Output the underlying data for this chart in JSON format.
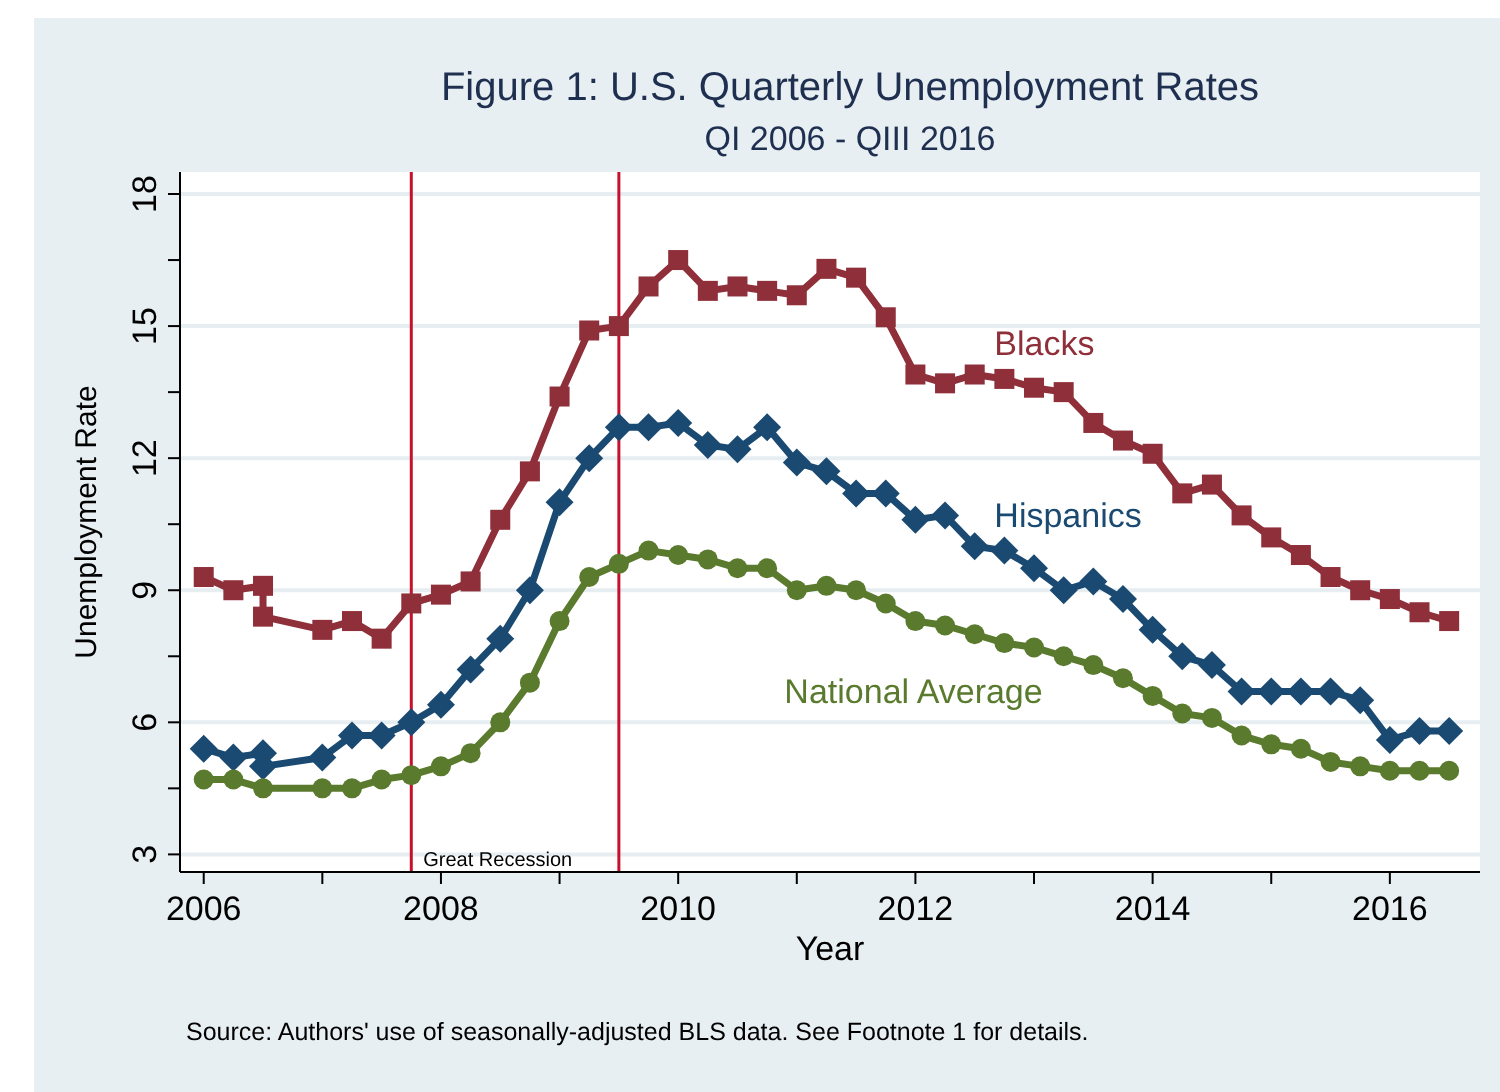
{
  "chart_data": {
    "type": "line",
    "title": "Figure 1: U.S. Quarterly Unemployment Rates",
    "subtitle": "QI 2006 - QIII 2016",
    "xlabel": "Year",
    "ylabel": "Unemployment Rate",
    "annotations": [
      "Source: Authors' use of seasonally-adjusted BLS data. See Footnote 1 for details."
    ],
    "xlim": [
      2005.8,
      2016.76
    ],
    "ylim": [
      2.6,
      18.5
    ],
    "xticks": [
      2006,
      {
        "value": 2007,
        "label": null
      },
      2008,
      {
        "value": 2009,
        "label": null
      },
      2010,
      {
        "value": 2011,
        "label": null
      },
      2012,
      {
        "value": 2013,
        "label": null
      },
      2014,
      {
        "value": 2015,
        "label": null
      },
      2016
    ],
    "yticks": [
      3,
      {
        "value": 4.5,
        "label": null
      },
      6,
      {
        "value": 7.5,
        "label": null
      },
      9,
      {
        "value": 10.5,
        "label": null
      },
      12,
      {
        "value": 13.5,
        "label": null
      },
      15,
      {
        "value": 16.5,
        "label": null
      },
      18
    ],
    "grid": "y",
    "legend": false,
    "line_style": "solid",
    "ref_lines": [
      {
        "axis": "x",
        "value": 2007.75,
        "label": "Great Recession",
        "color": "#c8102e"
      },
      {
        "axis": "x",
        "value": 2009.5,
        "color": "#c8102e"
      }
    ],
    "series": [
      {
        "name": "Blacks",
        "color": "#8f2f3a",
        "marker": "square",
        "x": [
          2006,
          2006.25,
          2006.5,
          2006.5,
          2007,
          2007.25,
          2007.5,
          2007.75,
          2008,
          2008.25,
          2008.5,
          2008.75,
          2009,
          2009.25,
          2009.5,
          2009.75,
          2010,
          2010.25,
          2010.5,
          2010.75,
          2011,
          2011.25,
          2011.5,
          2011.75,
          2012,
          2012.25,
          2012.5,
          2012.75,
          2013,
          2013.25,
          2013.5,
          2013.75,
          2014,
          2014.25,
          2014.5,
          2014.75,
          2015,
          2015.25,
          2015.5,
          2015.75,
          2016,
          2016.25,
          2016.5
        ],
        "values": [
          9.3,
          9.0,
          9.1,
          8.4,
          8.1,
          8.3,
          7.9,
          8.7,
          8.9,
          9.2,
          10.6,
          11.7,
          13.4,
          14.9,
          15.0,
          15.9,
          16.5,
          15.8,
          15.9,
          15.8,
          15.7,
          16.3,
          16.1,
          15.2,
          13.9,
          13.7,
          13.9,
          13.8,
          13.6,
          13.5,
          12.8,
          12.4,
          12.1,
          11.2,
          11.4,
          10.7,
          10.2,
          9.8,
          9.3,
          9.0,
          8.8,
          8.5,
          8.3
        ]
      },
      {
        "name": "Hispanics",
        "color": "#1a4a72",
        "marker": "diamond",
        "x": [
          2006,
          2006.25,
          2006.5,
          2006.5,
          2007,
          2007.25,
          2007.5,
          2007.75,
          2008,
          2008.25,
          2008.5,
          2008.75,
          2009,
          2009.25,
          2009.5,
          2009.75,
          2010,
          2010.25,
          2010.5,
          2010.75,
          2011,
          2011.25,
          2011.5,
          2011.75,
          2012,
          2012.25,
          2012.5,
          2012.75,
          2013,
          2013.25,
          2013.5,
          2013.75,
          2014,
          2014.25,
          2014.5,
          2014.75,
          2015,
          2015.25,
          2015.5,
          2015.75,
          2016,
          2016.25,
          2016.5
        ],
        "values": [
          5.4,
          5.2,
          5.3,
          5.0,
          5.2,
          5.7,
          5.7,
          6.0,
          6.4,
          7.2,
          7.9,
          9.0,
          11.0,
          12.0,
          12.7,
          12.7,
          12.8,
          12.3,
          12.2,
          12.7,
          11.9,
          11.7,
          11.2,
          11.2,
          10.6,
          10.7,
          10.0,
          9.9,
          9.5,
          9.0,
          9.2,
          8.8,
          8.1,
          7.5,
          7.3,
          6.7,
          6.7,
          6.7,
          6.7,
          6.5,
          5.6,
          5.8,
          5.8
        ]
      },
      {
        "name": "National Average",
        "color": "#5a7a2e",
        "marker": "circle",
        "x": [
          2006,
          2006.25,
          2006.5,
          2007,
          2007.25,
          2007.5,
          2007.75,
          2008,
          2008.25,
          2008.5,
          2008.75,
          2009,
          2009.25,
          2009.5,
          2009.75,
          2010,
          2010.25,
          2010.5,
          2010.75,
          2011,
          2011.25,
          2011.5,
          2011.75,
          2012,
          2012.25,
          2012.5,
          2012.75,
          2013,
          2013.25,
          2013.5,
          2013.75,
          2014,
          2014.25,
          2014.5,
          2014.75,
          2015,
          2015.25,
          2015.5,
          2015.75,
          2016,
          2016.25,
          2016.5
        ],
        "values": [
          4.7,
          4.7,
          4.5,
          4.5,
          4.5,
          4.7,
          4.8,
          5.0,
          5.3,
          6.0,
          6.9,
          8.3,
          9.3,
          9.6,
          9.9,
          9.8,
          9.7,
          9.5,
          9.5,
          9.0,
          9.1,
          9.0,
          8.7,
          8.3,
          8.2,
          8.0,
          7.8,
          7.7,
          7.5,
          7.3,
          7.0,
          6.6,
          6.2,
          6.1,
          5.7,
          5.5,
          5.4,
          5.1,
          5.0,
          4.9,
          4.9,
          4.9
        ]
      }
    ]
  }
}
